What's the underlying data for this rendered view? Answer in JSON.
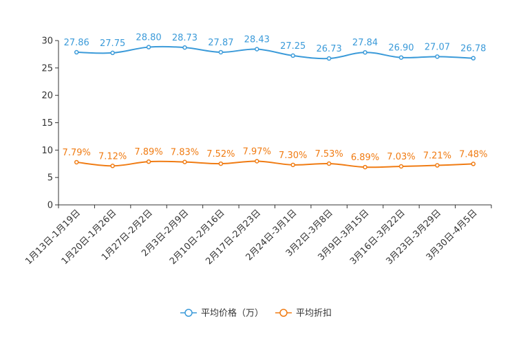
{
  "chart_data": {
    "type": "line",
    "title": "",
    "xlabel": "",
    "ylabel": "",
    "ylim": [
      0,
      30
    ],
    "yticks": [
      0,
      5,
      10,
      15,
      20,
      25,
      30
    ],
    "ytick_labels": [
      "0",
      "5",
      "10",
      "15",
      "20",
      "25",
      "30"
    ],
    "grid": false,
    "legend_position": "bottom-center",
    "categories": [
      "1月13日-1月19日",
      "1月20日-1月26日",
      "1月27日-2月2日",
      "2月3日-2月9日",
      "2月10日-2月16日",
      "2月17日-2月23日",
      "2月24日-3月1日",
      "3月2日-3月8日",
      "3月9日-3月15日",
      "3月16日-3月22日",
      "3月23日-3月29日",
      "3月30日-4月5日"
    ],
    "series": [
      {
        "name": "平均价格（万）",
        "color": "#3a9ad9",
        "values": [
          27.86,
          27.75,
          28.8,
          28.73,
          27.87,
          28.43,
          27.25,
          26.73,
          27.84,
          26.9,
          27.07,
          26.78
        ],
        "labels": [
          "27.86",
          "27.75",
          "28.80",
          "28.73",
          "27.87",
          "28.43",
          "27.25",
          "26.73",
          "27.84",
          "26.90",
          "27.07",
          "26.78"
        ]
      },
      {
        "name": "平均折扣",
        "color": "#f07b12",
        "values": [
          7.79,
          7.12,
          7.89,
          7.83,
          7.52,
          7.97,
          7.3,
          7.53,
          6.89,
          7.03,
          7.21,
          7.48
        ],
        "labels": [
          "7.79%",
          "7.12%",
          "7.89%",
          "7.83%",
          "7.52%",
          "7.97%",
          "7.30%",
          "7.53%",
          "6.89%",
          "7.03%",
          "7.21%",
          "7.48%"
        ]
      }
    ]
  }
}
